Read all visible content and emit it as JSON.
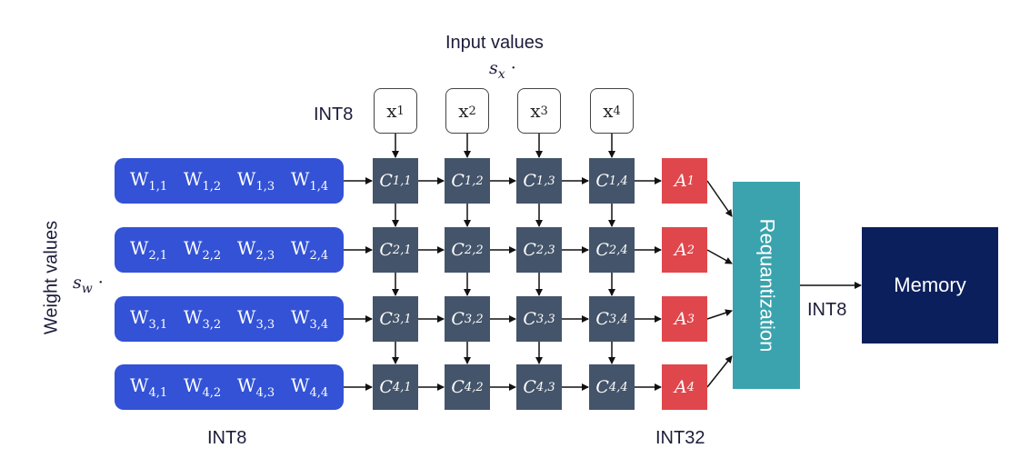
{
  "labels": {
    "input_values": "Input values",
    "input_scale": "s",
    "input_scale_sub": "x",
    "input_scale_dot": "·",
    "weight_values": "Weight values",
    "weight_scale": "s",
    "weight_scale_sub": "w",
    "weight_scale_dot": "·",
    "int8_top": "INT8",
    "int8_bottom": "INT8",
    "int32": "INT32",
    "int8_output": "INT8",
    "requantization": "Requantization",
    "memory": "Memory"
  },
  "inputs": [
    {
      "base": "x",
      "sub": "1"
    },
    {
      "base": "x",
      "sub": "2"
    },
    {
      "base": "x",
      "sub": "3"
    },
    {
      "base": "x",
      "sub": "4"
    }
  ],
  "weights": [
    [
      {
        "base": "W",
        "sub": "1,1"
      },
      {
        "base": "W",
        "sub": "1,2"
      },
      {
        "base": "W",
        "sub": "1,3"
      },
      {
        "base": "W",
        "sub": "1,4"
      }
    ],
    [
      {
        "base": "W",
        "sub": "2,1"
      },
      {
        "base": "W",
        "sub": "2,2"
      },
      {
        "base": "W",
        "sub": "2,3"
      },
      {
        "base": "W",
        "sub": "2,4"
      }
    ],
    [
      {
        "base": "W",
        "sub": "3,1"
      },
      {
        "base": "W",
        "sub": "3,2"
      },
      {
        "base": "W",
        "sub": "3,3"
      },
      {
        "base": "W",
        "sub": "3,4"
      }
    ],
    [
      {
        "base": "W",
        "sub": "4,1"
      },
      {
        "base": "W",
        "sub": "4,2"
      },
      {
        "base": "W",
        "sub": "4,3"
      },
      {
        "base": "W",
        "sub": "4,4"
      }
    ]
  ],
  "cells": [
    [
      {
        "base": "C",
        "sub": "1,1"
      },
      {
        "base": "C",
        "sub": "1,2"
      },
      {
        "base": "C",
        "sub": "1,3"
      },
      {
        "base": "C",
        "sub": "1,4"
      }
    ],
    [
      {
        "base": "C",
        "sub": "2,1"
      },
      {
        "base": "C",
        "sub": "2,2"
      },
      {
        "base": "C",
        "sub": "2,3"
      },
      {
        "base": "C",
        "sub": "2,4"
      }
    ],
    [
      {
        "base": "C",
        "sub": "3,1"
      },
      {
        "base": "C",
        "sub": "3,2"
      },
      {
        "base": "C",
        "sub": "3,3"
      },
      {
        "base": "C",
        "sub": "3,4"
      }
    ],
    [
      {
        "base": "C",
        "sub": "4,1"
      },
      {
        "base": "C",
        "sub": "4,2"
      },
      {
        "base": "C",
        "sub": "4,3"
      },
      {
        "base": "C",
        "sub": "4,4"
      }
    ]
  ],
  "accumulators": [
    {
      "base": "A",
      "sub": "1"
    },
    {
      "base": "A",
      "sub": "2"
    },
    {
      "base": "A",
      "sub": "3"
    },
    {
      "base": "A",
      "sub": "4"
    }
  ],
  "colors": {
    "weight_row": "#3352d6",
    "compute_cell": "#44546a",
    "accumulator": "#e0474c",
    "requantization": "#3aa3ad",
    "memory": "#0b1f5c",
    "arrow": "#111111"
  }
}
